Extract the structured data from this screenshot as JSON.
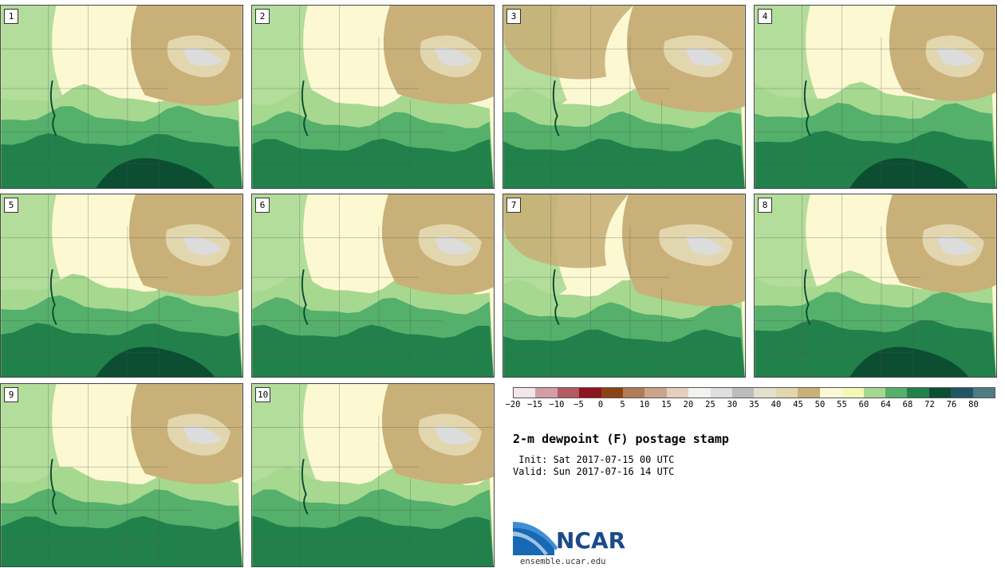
{
  "panels": [
    {
      "label": "1",
      "wet": 0.85,
      "dry": 0.9
    },
    {
      "label": "2",
      "wet": 0.55,
      "dry": 0.8
    },
    {
      "label": "3",
      "wet": 0.55,
      "dry": 1.3
    },
    {
      "label": "4",
      "wet": 1.0,
      "dry": 0.6
    },
    {
      "label": "5",
      "wet": 0.8,
      "dry": 1.0
    },
    {
      "label": "6",
      "wet": 0.7,
      "dry": 0.9
    },
    {
      "label": "7",
      "wet": 0.45,
      "dry": 1.6
    },
    {
      "label": "8",
      "wet": 1.0,
      "dry": 0.8
    },
    {
      "label": "9",
      "wet": 0.6,
      "dry": 0.9
    },
    {
      "label": "10",
      "wet": 0.6,
      "dry": 0.9
    }
  ],
  "colorbar": {
    "colors": [
      "#f2e6e8",
      "#d49ca4",
      "#b35a62",
      "#8c1520",
      "#8a4414",
      "#b07c58",
      "#cca48c",
      "#e6cebc",
      "#f4f2ee",
      "#e0dede",
      "#bcbcbc",
      "#e2e0cc",
      "#e2d6ae",
      "#c8b078",
      "#fbf8d8",
      "#f4f7b6",
      "#a6d890",
      "#54b06a",
      "#22804a",
      "#0c4e32",
      "#1f5864",
      "#4e7c84"
    ],
    "ticks": [
      "−20",
      "−15",
      "−10",
      "−5",
      "0",
      "5",
      "10",
      "15",
      "20",
      "25",
      "30",
      "35",
      "40",
      "45",
      "50",
      "55",
      "60",
      "64",
      "68",
      "72",
      "76",
      "80"
    ]
  },
  "title": "2-m dewpoint (F) postage stamp",
  "init_text": " Init: Sat 2017-07-15 00 UTC",
  "valid_text": "Valid: Sun 2017-07-16 14 UTC",
  "logo_text": "NCAR",
  "logo_url": "ensemble.ucar.edu",
  "map_colors": {
    "bg": "#fbf8d2",
    "light_green": "#a6d890",
    "mid_green": "#54b06a",
    "dark_green": "#22804a",
    "darkest_green": "#0c4e32",
    "tan": "#c8b078",
    "light_tan": "#e2d6ae",
    "grey": "#dcdcdc",
    "border": "#555555"
  }
}
